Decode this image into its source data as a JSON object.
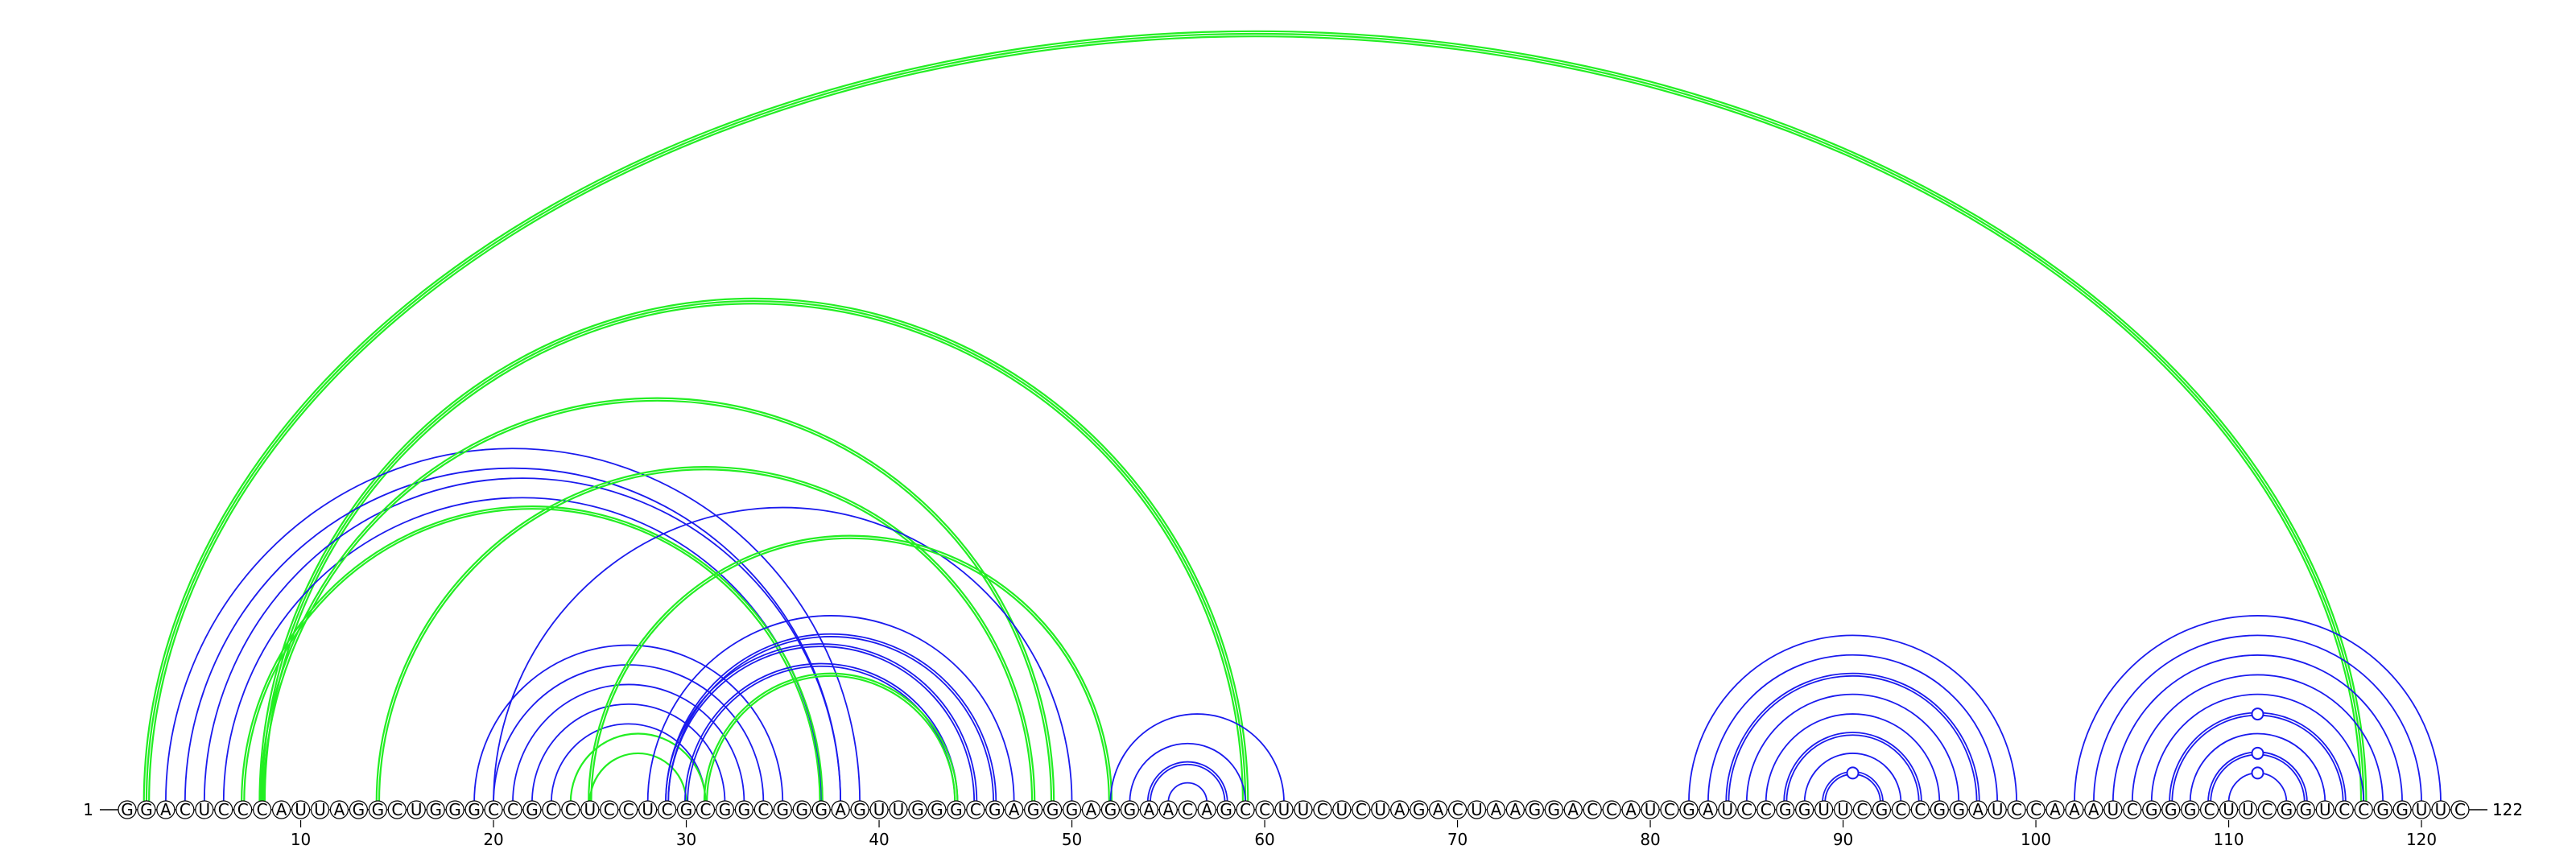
{
  "sequence": "GGACUCCCAUUAGGCUGGGCCGCCUCCUCGCGGCGGGAGUUGGGCGAGGGAGGAACAGCCUUCUCUAGACUAAGGACCAUCGAUCCGGUUCGCCGGAUCCAAAUCGGGCUUCGGUCCGGUUC",
  "start_label": "1",
  "end_label": "122",
  "ticks": [
    10,
    20,
    30,
    40,
    50,
    60,
    70,
    80,
    90,
    100,
    110,
    120
  ],
  "colors": {
    "blue": "#1a1aee",
    "green": "#22ee22",
    "backbone": "#000000",
    "node_fill": "#ffffff"
  },
  "arcs": [
    {
      "i": 8,
      "j": 59,
      "color": "green",
      "lines": 3
    },
    {
      "i": 2,
      "j": 117,
      "color": "green",
      "lines": 3
    },
    {
      "i": 3,
      "j": 39,
      "color": "blue",
      "lines": 1
    },
    {
      "i": 4,
      "j": 38,
      "color": "blue",
      "lines": 1
    },
    {
      "i": 5,
      "j": 38,
      "color": "blue",
      "lines": 1
    },
    {
      "i": 6,
      "j": 37,
      "color": "blue",
      "lines": 1
    },
    {
      "i": 7,
      "j": 37,
      "color": "green",
      "lines": 2
    },
    {
      "i": 8,
      "j": 49,
      "color": "green",
      "lines": 2
    },
    {
      "i": 14,
      "j": 48,
      "color": "green",
      "lines": 2
    },
    {
      "i": 20,
      "j": 50,
      "color": "blue",
      "lines": 1
    },
    {
      "i": 19,
      "j": 35,
      "color": "blue",
      "lines": 1
    },
    {
      "i": 20,
      "j": 34,
      "color": "blue",
      "lines": 1
    },
    {
      "i": 21,
      "j": 33,
      "color": "blue",
      "lines": 1
    },
    {
      "i": 22,
      "j": 32,
      "color": "blue",
      "lines": 1
    },
    {
      "i": 23,
      "j": 31,
      "color": "blue",
      "lines": 1
    },
    {
      "i": 24,
      "j": 31,
      "color": "green",
      "lines": 1
    },
    {
      "i": 25,
      "j": 30,
      "color": "green",
      "lines": 1
    },
    {
      "i": 25,
      "j": 52,
      "color": "green",
      "lines": 2
    },
    {
      "i": 28,
      "j": 47,
      "color": "blue",
      "lines": 1
    },
    {
      "i": 29,
      "j": 46,
      "color": "blue",
      "lines": 2
    },
    {
      "i": 29,
      "j": 45,
      "color": "blue",
      "lines": 2
    },
    {
      "i": 30,
      "j": 44,
      "color": "blue",
      "lines": 2
    },
    {
      "i": 31,
      "j": 44,
      "color": "green",
      "lines": 2
    },
    {
      "i": 52,
      "j": 61,
      "color": "blue",
      "lines": 1
    },
    {
      "i": 53,
      "j": 59,
      "color": "blue",
      "lines": 1
    },
    {
      "i": 54,
      "j": 58,
      "color": "blue",
      "lines": 2
    },
    {
      "i": 55,
      "j": 57,
      "color": "blue",
      "lines": 1
    },
    {
      "i": 82,
      "j": 99,
      "color": "blue",
      "lines": 1
    },
    {
      "i": 83,
      "j": 98,
      "color": "blue",
      "lines": 1
    },
    {
      "i": 84,
      "j": 97,
      "color": "blue",
      "lines": 2
    },
    {
      "i": 85,
      "j": 96,
      "color": "blue",
      "lines": 1
    },
    {
      "i": 86,
      "j": 95,
      "color": "blue",
      "lines": 1
    },
    {
      "i": 87,
      "j": 94,
      "color": "blue",
      "lines": 2
    },
    {
      "i": 88,
      "j": 93,
      "color": "blue",
      "lines": 1
    },
    {
      "i": 89,
      "j": 92,
      "color": "blue",
      "lines": 2
    },
    {
      "i": 102,
      "j": 121,
      "color": "blue",
      "lines": 1
    },
    {
      "i": 103,
      "j": 120,
      "color": "blue",
      "lines": 1
    },
    {
      "i": 104,
      "j": 119,
      "color": "blue",
      "lines": 1
    },
    {
      "i": 105,
      "j": 118,
      "color": "blue",
      "lines": 1
    },
    {
      "i": 106,
      "j": 117,
      "color": "blue",
      "lines": 1
    },
    {
      "i": 107,
      "j": 116,
      "color": "blue",
      "lines": 2
    },
    {
      "i": 108,
      "j": 115,
      "color": "blue",
      "lines": 1
    },
    {
      "i": 109,
      "j": 114,
      "color": "blue",
      "lines": 2
    },
    {
      "i": 110,
      "j": 113,
      "color": "blue",
      "lines": 1
    }
  ],
  "markers": [
    {
      "i": 89,
      "j": 92
    },
    {
      "i": 107,
      "j": 116
    },
    {
      "i": 109,
      "j": 114
    },
    {
      "i": 110,
      "j": 113
    }
  ]
}
